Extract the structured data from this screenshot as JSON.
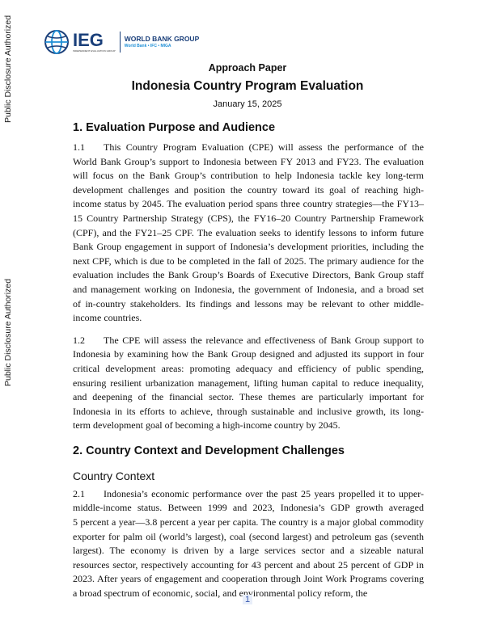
{
  "side_watermark": "Public Disclosure Authorized",
  "logo": {
    "ieg": "IEG",
    "ieg_sub": "INDEPENDENT EVALUATION GROUP",
    "wbg": "WORLD BANK GROUP",
    "wbg_sub": "World Bank • IFC • MIGA"
  },
  "header": {
    "kicker": "Approach Paper",
    "title": "Indonesia Country Program Evaluation",
    "date": "January 15, 2025"
  },
  "sections": {
    "s1": {
      "heading": "1. Evaluation Purpose and Audience"
    },
    "s2": {
      "heading": "2. Country Context and Development Challenges",
      "subheading": "Country Context"
    }
  },
  "paragraphs": {
    "p11": {
      "num": "1.1",
      "lines": [
        "This Country Program Evaluation (CPE) will assess the performance of the",
        "World Bank Group’s support to Indonesia between FY 2013 and FY23. The evaluation",
        "will focus on the Bank Group’s contribution to help Indonesia tackle key long-term",
        "development challenges and position the country toward its goal of reaching high-",
        "income status by 2045. The evaluation period spans three country strategies—the FY13–",
        "15 Country Partnership Strategy (CPS), the FY16–20 Country Partnership Framework",
        "(CPF), and the FY21–25 CPF. The evaluation seeks to identify lessons to inform future",
        "Bank Group engagement in support of Indonesia’s development priorities, including the",
        "next CPF, which is due to be completed in the fall of 2025. The primary audience for the",
        "evaluation includes the Bank Group’s Boards of Executive Directors, Bank Group staff",
        "and management working on Indonesia, the government of Indonesia, and a broad set",
        "of in-country stakeholders. Its findings and lessons may be relevant to other middle-",
        "income countries."
      ]
    },
    "p12": {
      "num": "1.2",
      "lines": [
        "The CPE will assess the relevance and effectiveness of Bank Group support to",
        "Indonesia by examining how the Bank Group designed and adjusted its support in four",
        "critical development areas: promoting adequacy and efficiency of public spending,",
        "ensuring resilient urbanization management, lifting human capital to reduce inequality,",
        "and deepening of the financial sector. These themes are particularly important for",
        "Indonesia in its efforts to achieve, through sustainable and inclusive growth, its long-",
        "term development goal of becoming a high-income country by 2045."
      ]
    },
    "p21": {
      "num": "2.1",
      "lines": [
        "Indonesia’s economic performance over the past 25 years propelled it to upper-",
        "middle-income status. Between 1999 and 2023, Indonesia’s GDP growth averaged",
        "5 percent a year—3.8 percent a year per capita. The country is a major global commodity",
        "exporter for palm oil (world’s largest), coal (second largest) and petroleum gas (seventh",
        "largest). The economy is driven by a large services sector and a sizeable natural",
        "resources sector, respectively accounting for 43 percent and about 25 percent of GDP in",
        "2023. After years of engagement and cooperation through Joint Work Programs covering",
        "a broad spectrum of economic, social, and environmental policy reform, the"
      ]
    }
  },
  "page_number": "1"
}
